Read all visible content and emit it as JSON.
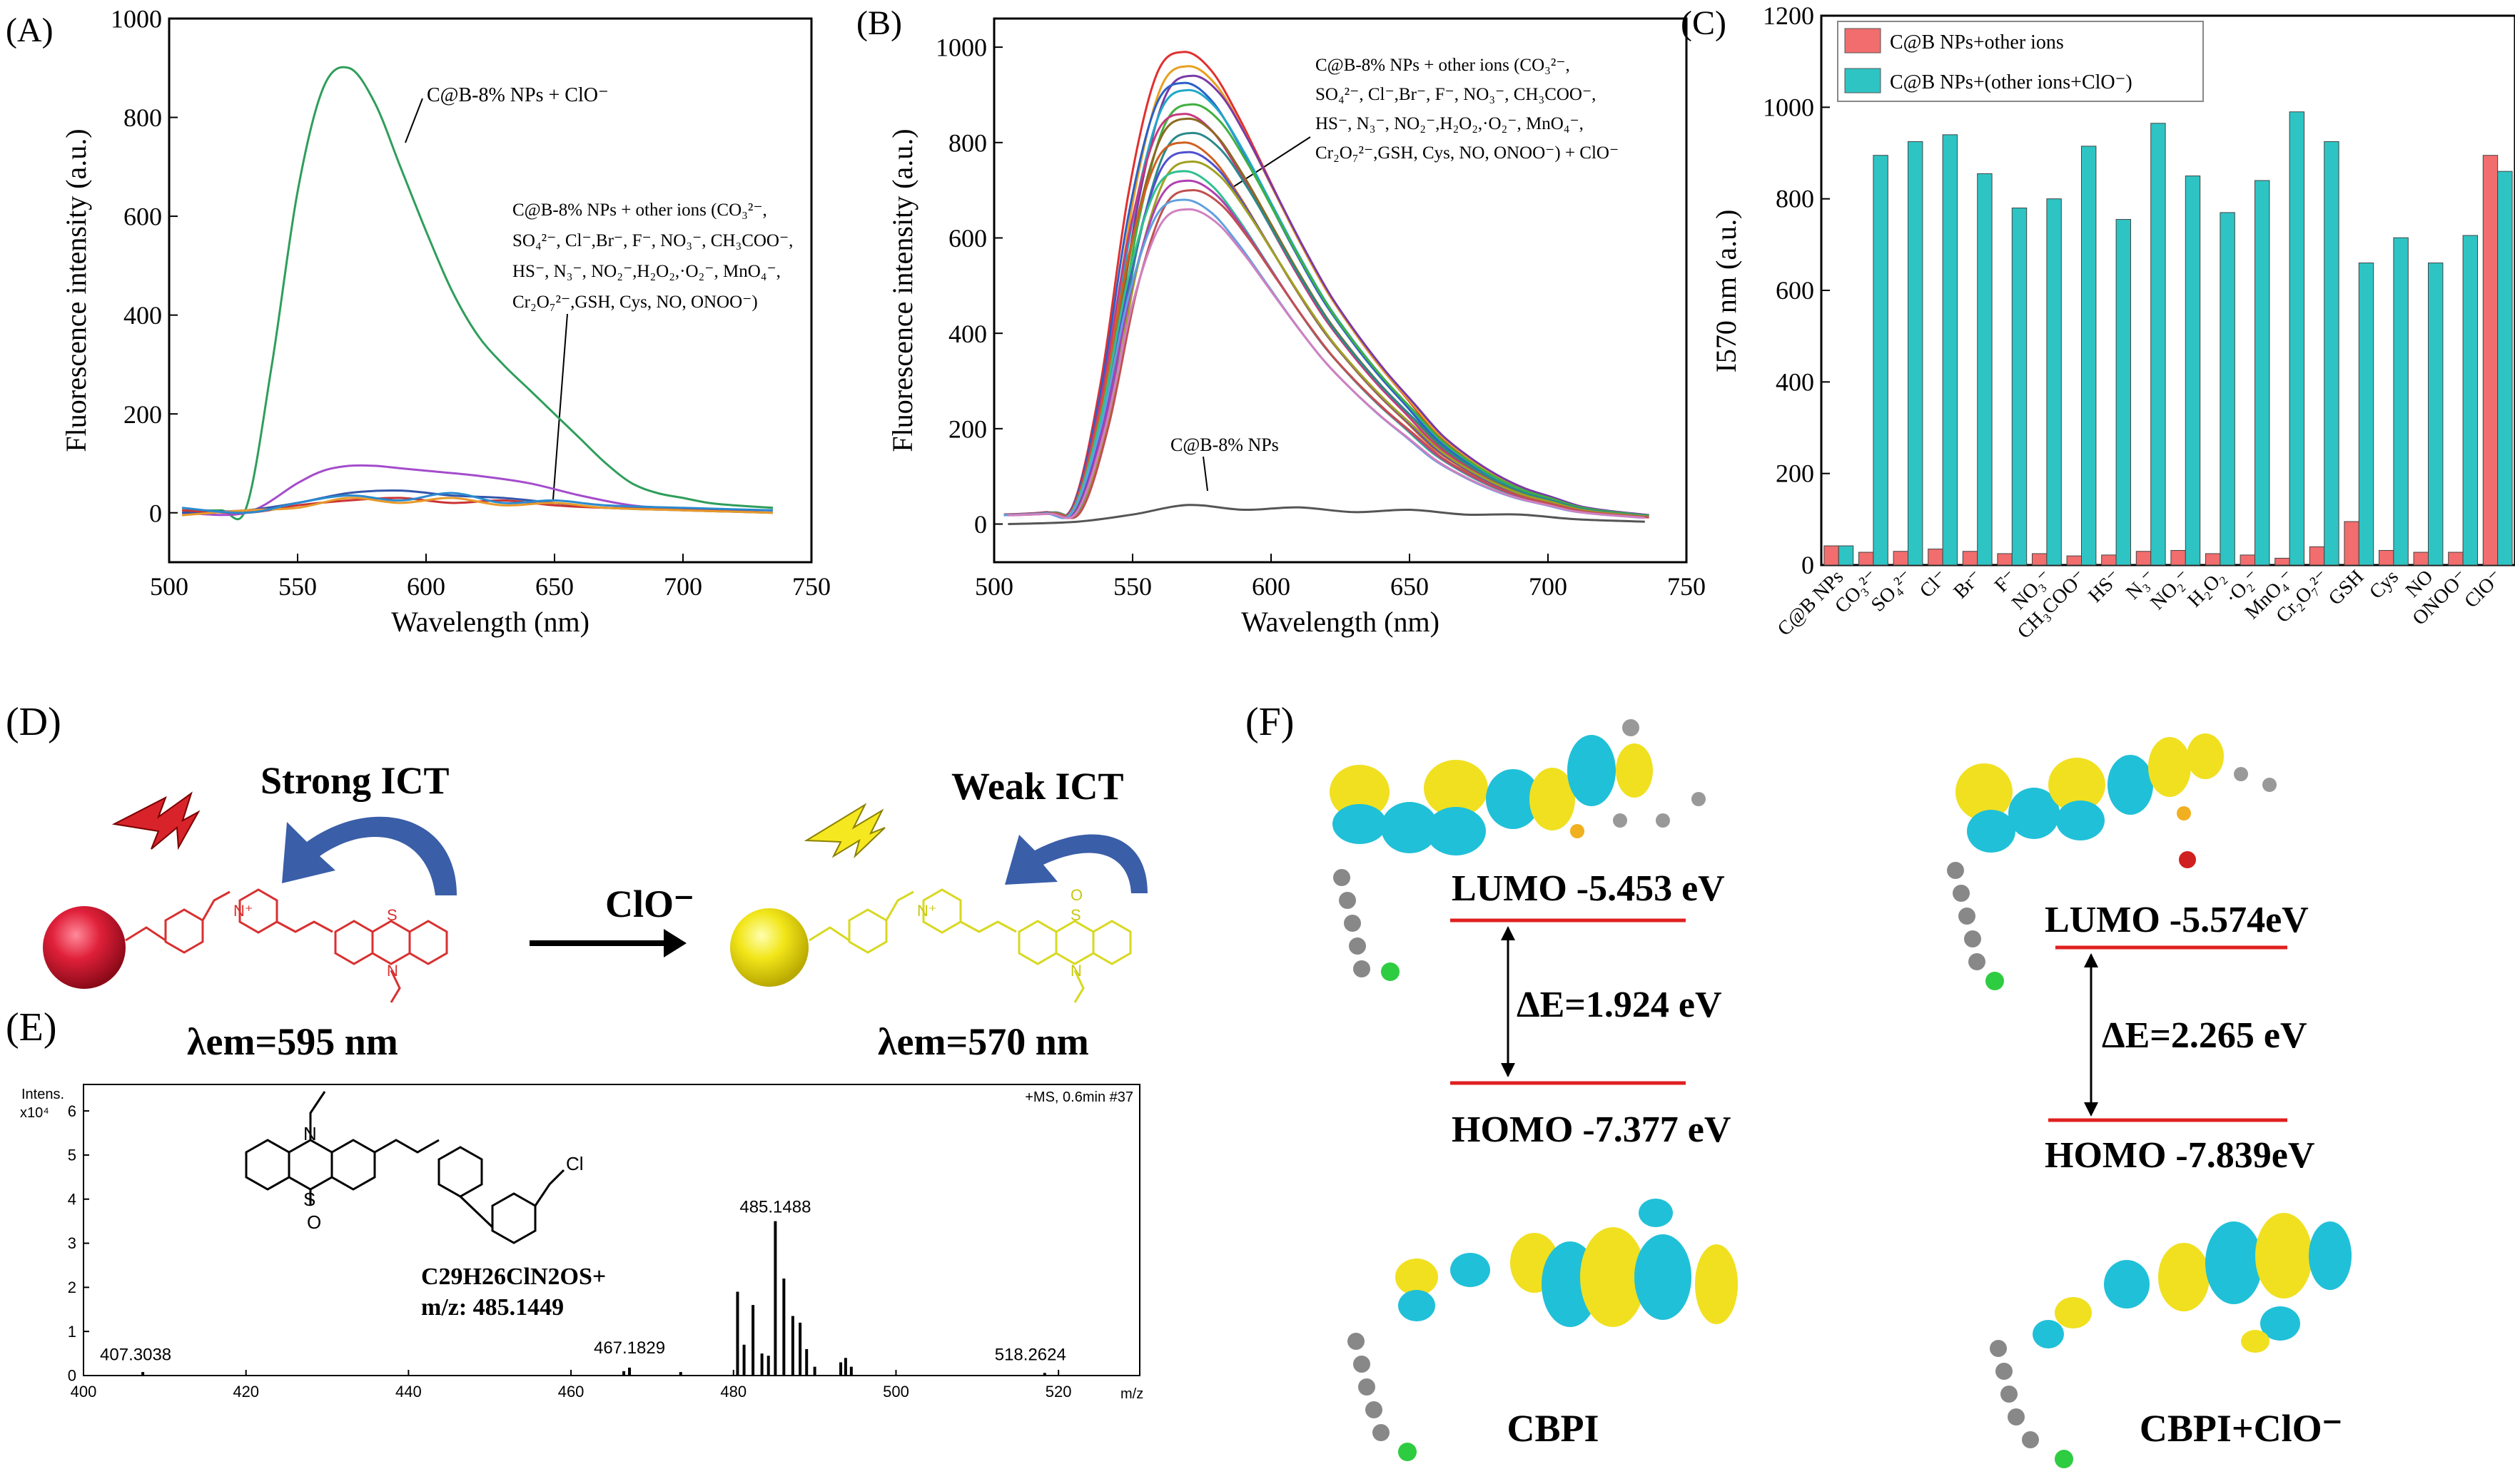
{
  "panels": {
    "A": {
      "label": "(A)",
      "ylabel": "Fluorescence intensity (a.u.)",
      "xlabel": "Wavelength (nm)",
      "annotation_top": "C@B-8% NPs + ClO⁻",
      "annotation_lines": [
        "C@B-8% NPs + other ions (CO₃²⁻,",
        "SO₄²⁻, Cl⁻,Br⁻, F⁻, NO₃⁻, CH₃COO⁻,",
        " HS⁻, N₃⁻, NO₂⁻,H₂O₂,·O₂⁻, MnO₄⁻,",
        "Cr₂O₇²⁻,GSH, Cys, NO, ONOO⁻)"
      ]
    },
    "B": {
      "label": "(B)",
      "ylabel": "Fluorescence intensity (a.u.)",
      "xlabel": "Wavelength (nm)",
      "annotation_lines": [
        "C@B-8% NPs + other ions (CO₃²⁻,",
        "SO₄²⁻, Cl⁻,Br⁻, F⁻, NO₃⁻, CH₃COO⁻,",
        " HS⁻, N₃⁻, NO₂⁻,H₂O₂,·O₂⁻, MnO₄⁻,",
        "Cr₂O₇²⁻,GSH, Cys, NO, ONOO⁻) + ClO⁻"
      ],
      "annotation_bottom": "C@B-8% NPs"
    },
    "C": {
      "label": "(C)",
      "ylabel": "I570 nm (a.u.)",
      "legend": [
        "C@B NPs+other ions",
        "C@B NPs+(other ions+ClO⁻)"
      ]
    },
    "D": {
      "label": "(D)",
      "strong": "Strong ICT",
      "weak": "Weak ICT",
      "reagent": "ClO⁻",
      "lambda_left": "λem=595 nm",
      "lambda_right": "λem=570 nm"
    },
    "E": {
      "label": "(E)",
      "intens": "Intens.",
      "scale": "x10⁴",
      "ms_tag": "+MS, 0.6min #37",
      "formula": "C29H26ClN2OS+",
      "mz_label": "m/z: 485.1449",
      "x_unit": "m/z",
      "peak_labels": [
        "407.3038",
        "467.1829",
        "485.1488",
        "518.2624"
      ]
    },
    "F": {
      "label": "(F)",
      "lumo1": "LUMO -5.453 eV",
      "homo1": "HOMO -7.377 eV",
      "de1": "ΔE=1.924 eV",
      "lumo2": "LUMO -5.574eV",
      "homo2": "HOMO -7.839eV",
      "de2": "ΔE=2.265 eV",
      "name1": "CBPI",
      "name2": "CBPI+ClO⁻"
    }
  },
  "colors": {
    "green_curve": "#2e9e5b",
    "bar_red": "#f26d6d",
    "bar_cyan": "#2ec4c4",
    "level_red": "#e02020",
    "orbital_yellow": "#f0e020",
    "orbital_cyan": "#20c0d8"
  },
  "chart_data": [
    {
      "type": "line",
      "panel": "A",
      "xlabel": "Wavelength (nm)",
      "ylabel": "Fluorescence intensity (a.u.)",
      "xlim": [
        500,
        750
      ],
      "ylim": [
        -100,
        1000
      ],
      "xticks": [
        500,
        550,
        600,
        650,
        700,
        750
      ],
      "yticks": [
        0,
        200,
        400,
        600,
        800,
        1000
      ],
      "series": [
        {
          "name": "C@B-8% NPs + ClO⁻",
          "color": "#2e9e5b",
          "x": [
            505,
            520,
            530,
            540,
            550,
            560,
            570,
            580,
            590,
            600,
            610,
            620,
            630,
            640,
            650,
            660,
            670,
            680,
            690,
            700,
            710,
            720,
            735
          ],
          "y": [
            5,
            5,
            10,
            300,
            650,
            860,
            900,
            830,
            700,
            570,
            450,
            360,
            300,
            250,
            200,
            150,
            100,
            60,
            40,
            30,
            20,
            15,
            10
          ]
        },
        {
          "name": "",
          "color": "#a44ccc",
          "x": [
            505,
            530,
            550,
            560,
            570,
            580,
            590,
            600,
            620,
            640,
            660,
            680,
            700,
            735
          ],
          "y": [
            0,
            0,
            60,
            85,
            95,
            95,
            90,
            85,
            75,
            60,
            35,
            15,
            8,
            5
          ]
        },
        {
          "name": "",
          "color": "#3355aa",
          "x": [
            505,
            530,
            550,
            570,
            590,
            610,
            630,
            650,
            670,
            700,
            735
          ],
          "y": [
            0,
            5,
            20,
            40,
            45,
            35,
            30,
            20,
            10,
            5,
            0
          ]
        },
        {
          "name": "",
          "color": "#cc3333",
          "x": [
            505,
            530,
            550,
            570,
            590,
            610,
            630,
            650,
            670,
            700,
            735
          ],
          "y": [
            5,
            0,
            15,
            25,
            30,
            20,
            25,
            15,
            10,
            8,
            5
          ]
        },
        {
          "name": "",
          "color": "#e89a2a",
          "x": [
            505,
            530,
            550,
            570,
            590,
            610,
            630,
            650,
            670,
            700,
            735
          ],
          "y": [
            -5,
            5,
            10,
            30,
            20,
            30,
            15,
            20,
            10,
            5,
            0
          ]
        },
        {
          "name": "",
          "color": "#2a8ad0",
          "x": [
            505,
            530,
            550,
            570,
            590,
            610,
            630,
            650,
            670,
            700,
            735
          ],
          "y": [
            10,
            0,
            20,
            35,
            25,
            40,
            20,
            25,
            15,
            10,
            5
          ]
        }
      ]
    },
    {
      "type": "line",
      "panel": "B",
      "xlabel": "Wavelength (nm)",
      "ylabel": "Fluorescence intensity (a.u.)",
      "xlim": [
        500,
        750
      ],
      "ylim": [
        -80,
        1060
      ],
      "xticks": [
        500,
        550,
        600,
        650,
        700,
        750
      ],
      "yticks": [
        0,
        200,
        400,
        600,
        800,
        1000
      ],
      "peaks": [
        990,
        960,
        940,
        925,
        910,
        880,
        860,
        850,
        820,
        800,
        780,
        760,
        740,
        720,
        700,
        680,
        660
      ],
      "baseline_name": "C@B-8% NPs",
      "baseline": {
        "x": [
          505,
          530,
          550,
          570,
          590,
          610,
          630,
          650,
          670,
          690,
          710,
          735
        ],
        "y": [
          0,
          5,
          20,
          40,
          30,
          35,
          25,
          30,
          20,
          20,
          10,
          5
        ]
      }
    },
    {
      "type": "bar",
      "panel": "C",
      "ylabel": "I570 nm (a.u.)",
      "ylim": [
        0,
        1200
      ],
      "yticks": [
        0,
        200,
        400,
        600,
        800,
        1000,
        1200
      ],
      "categories": [
        "C@B NPs",
        "CO₃²⁻",
        "SO₄²⁻",
        "Cl⁻",
        "Br⁻",
        "F⁻",
        "NO₃⁻",
        "CH₃COO⁻",
        "HS⁻",
        "N₃⁻",
        "NO₂⁻",
        "H₂O₂",
        "·O₂⁻",
        "MnO₄⁻",
        "Cr₂O₇²⁻",
        "GSH",
        "Cys",
        "NO",
        "ONOO⁻",
        "ClO⁻"
      ],
      "series": [
        {
          "name": "C@B NPs+other ions",
          "color": "#f26d6d",
          "values": [
            42,
            28,
            30,
            35,
            30,
            25,
            25,
            20,
            22,
            30,
            32,
            25,
            22,
            15,
            40,
            95,
            32,
            28,
            28,
            895
          ]
        },
        {
          "name": "C@B NPs+(other ions+ClO⁻)",
          "color": "#2ec4c4",
          "values": [
            42,
            895,
            925,
            940,
            855,
            780,
            800,
            915,
            755,
            965,
            850,
            770,
            840,
            990,
            925,
            660,
            715,
            660,
            720,
            860
          ]
        }
      ]
    },
    {
      "type": "bar",
      "panel": "E",
      "xlim": [
        400,
        530
      ],
      "ylim": [
        0,
        6.6
      ],
      "xticks": [
        400,
        420,
        440,
        460,
        480,
        500,
        520
      ],
      "yticks": [
        0,
        1,
        2,
        3,
        4,
        5,
        6
      ],
      "peaks": [
        {
          "x": 407.3,
          "y": 0.08
        },
        {
          "x": 466.5,
          "y": 0.1
        },
        {
          "x": 467.2,
          "y": 0.18
        },
        {
          "x": 473.5,
          "y": 0.08
        },
        {
          "x": 480.5,
          "y": 1.9
        },
        {
          "x": 481.3,
          "y": 0.7
        },
        {
          "x": 482.4,
          "y": 1.6
        },
        {
          "x": 483.5,
          "y": 0.5
        },
        {
          "x": 484.3,
          "y": 0.45
        },
        {
          "x": 485.15,
          "y": 3.5
        },
        {
          "x": 486.2,
          "y": 2.2
        },
        {
          "x": 487.3,
          "y": 1.35
        },
        {
          "x": 488.2,
          "y": 1.2
        },
        {
          "x": 489.0,
          "y": 0.6
        },
        {
          "x": 490.0,
          "y": 0.2
        },
        {
          "x": 493.2,
          "y": 0.3
        },
        {
          "x": 493.8,
          "y": 0.4
        },
        {
          "x": 494.5,
          "y": 0.2
        },
        {
          "x": 518.3,
          "y": 0.06
        }
      ]
    }
  ]
}
